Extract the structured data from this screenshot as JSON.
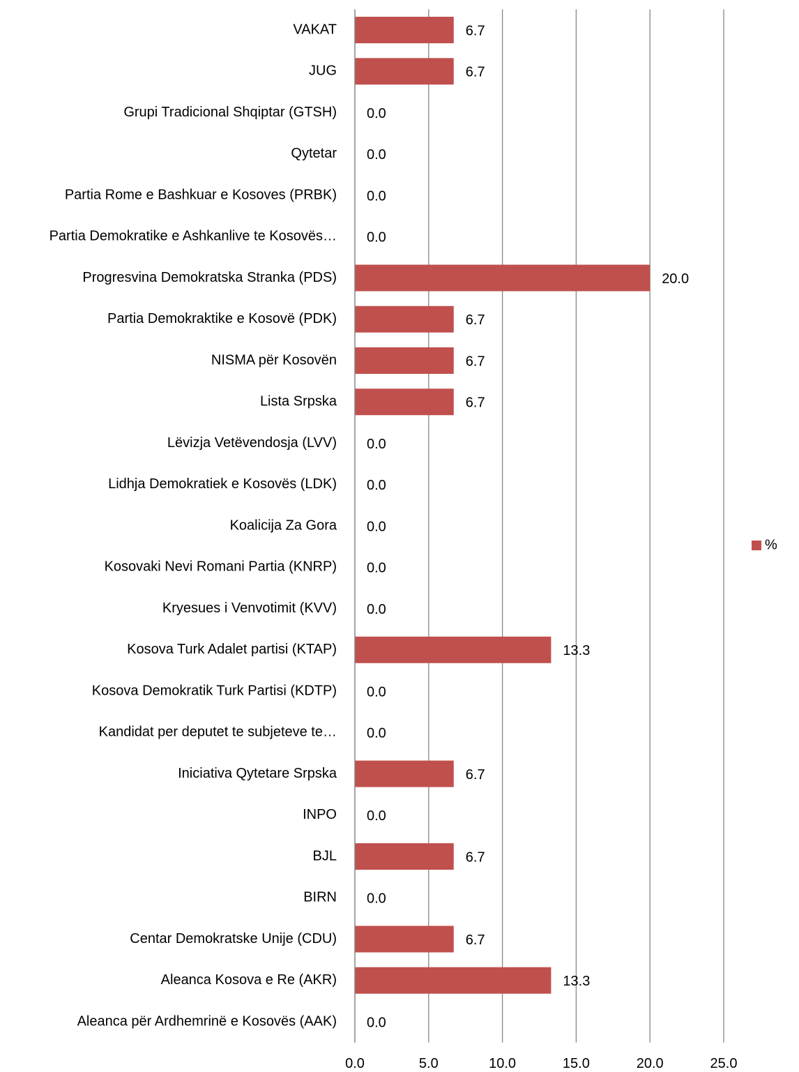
{
  "chart_data": {
    "type": "bar",
    "orientation": "horizontal",
    "categories": [
      "VAKAT",
      "JUG",
      "Grupi Tradicional Shqiptar (GTSH)",
      "Qytetar",
      "Partia Rome e Bashkuar e Kosoves (PRBK)",
      "Partia Demokratike e Ashkanlive te Kosovës…",
      "Progresvina Demokratska Stranka (PDS)",
      "Partia Demokraktike e Kosovë (PDK)",
      "NISMA për Kosovën",
      "Lista Srpska",
      "Lëvizja Vetëvendosja (LVV)",
      "Lidhja Demokratiek e Kosovës (LDK)",
      "Koalicija Za Gora",
      "Kosovaki Nevi  Romani Partia (KNRP)",
      "Kryesues i Venvotimit (KVV)",
      "Kosova Turk Adalet partisi (KTAP)",
      "Kosova Demokratik Turk Partisi (KDTP)",
      "Kandidat per deputet te subjeteve te…",
      "Iniciativa Qytetare Srpska",
      "INPO",
      "BJL",
      "BIRN",
      "Centar Demokratske Unije (CDU)",
      "Aleanca Kosova e Re (AKR)",
      "Aleanca për Ardhemrinë e Kosovës (AAK)"
    ],
    "series": [
      {
        "name": "%",
        "color": "#c0504d",
        "values": [
          6.7,
          6.7,
          0,
          0,
          0,
          0,
          20,
          6.7,
          6.7,
          6.7,
          0,
          0,
          0,
          0,
          0,
          13.3,
          0,
          0,
          6.7,
          0,
          6.7,
          0,
          6.7,
          13.3,
          0
        ],
        "value_labels": [
          "6.7",
          "6.7",
          "0.0",
          "0.0",
          "0.0",
          "0.0",
          "20.0",
          "6.7",
          "6.7",
          "6.7",
          "0.0",
          "0.0",
          "0.0",
          "0.0",
          "0.0",
          "13.3",
          "0.0",
          "0.0",
          "6.7",
          "0.0",
          "6.7",
          "0.0",
          "6.7",
          "13.3",
          "0.0"
        ]
      }
    ],
    "xlim": [
      0,
      25
    ],
    "xticks": [
      {
        "value": 0,
        "label": "0.0"
      },
      {
        "value": 5,
        "label": "5.0"
      },
      {
        "value": 10,
        "label": "10.0"
      },
      {
        "value": 15,
        "label": "15.0"
      },
      {
        "value": 20,
        "label": "20.0"
      },
      {
        "value": 25,
        "label": "25.0"
      }
    ],
    "grid": true,
    "legend": "right"
  }
}
